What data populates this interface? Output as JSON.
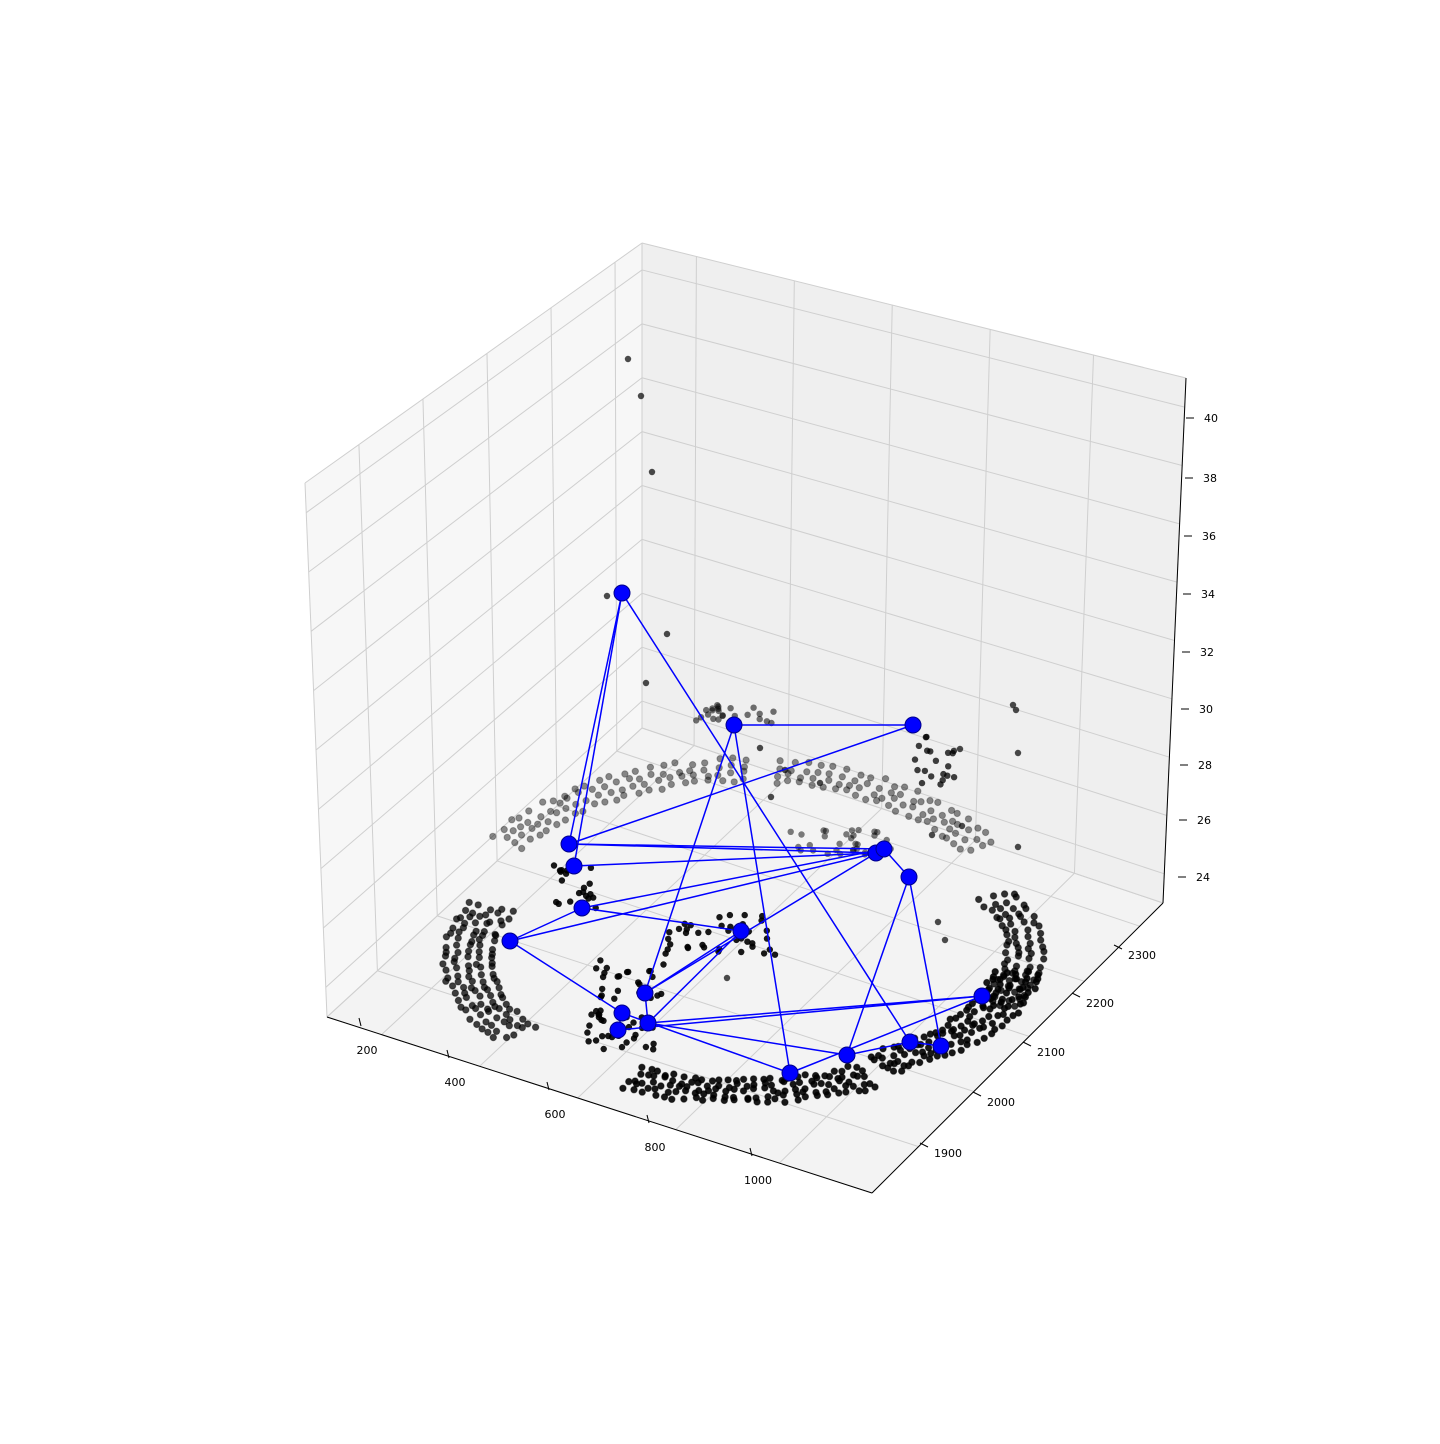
{
  "chart_data": {
    "type": "scatter",
    "projection": "3d",
    "title": "",
    "xlabel": "",
    "ylabel": "",
    "zlabel": "",
    "grid": true,
    "x_ticks": [
      "200",
      "400",
      "600",
      "800",
      "1000"
    ],
    "y_ticks": [
      "1900",
      "2000",
      "2100",
      "2200",
      "2300"
    ],
    "z_ticks": [
      "24",
      "26",
      "28",
      "30",
      "32",
      "34",
      "36",
      "38",
      "40"
    ],
    "xlim": [
      100,
      1150
    ],
    "ylim": [
      1820,
      2370
    ],
    "zlim": [
      23,
      41
    ],
    "colors": {
      "points": "#000000",
      "path": "#0000ff",
      "pane_left": "#f7f7f7",
      "pane_back": "#f0f0f0",
      "pane_floor": "#f4f4f4",
      "grid": "#c8c8c8"
    },
    "series": [
      {
        "name": "",
        "kind": "scatter",
        "note_points": "dense ring of point clusters around z≈24-30",
        "points": []
      },
      {
        "name": "",
        "kind": "path",
        "nodes": []
      }
    ]
  }
}
